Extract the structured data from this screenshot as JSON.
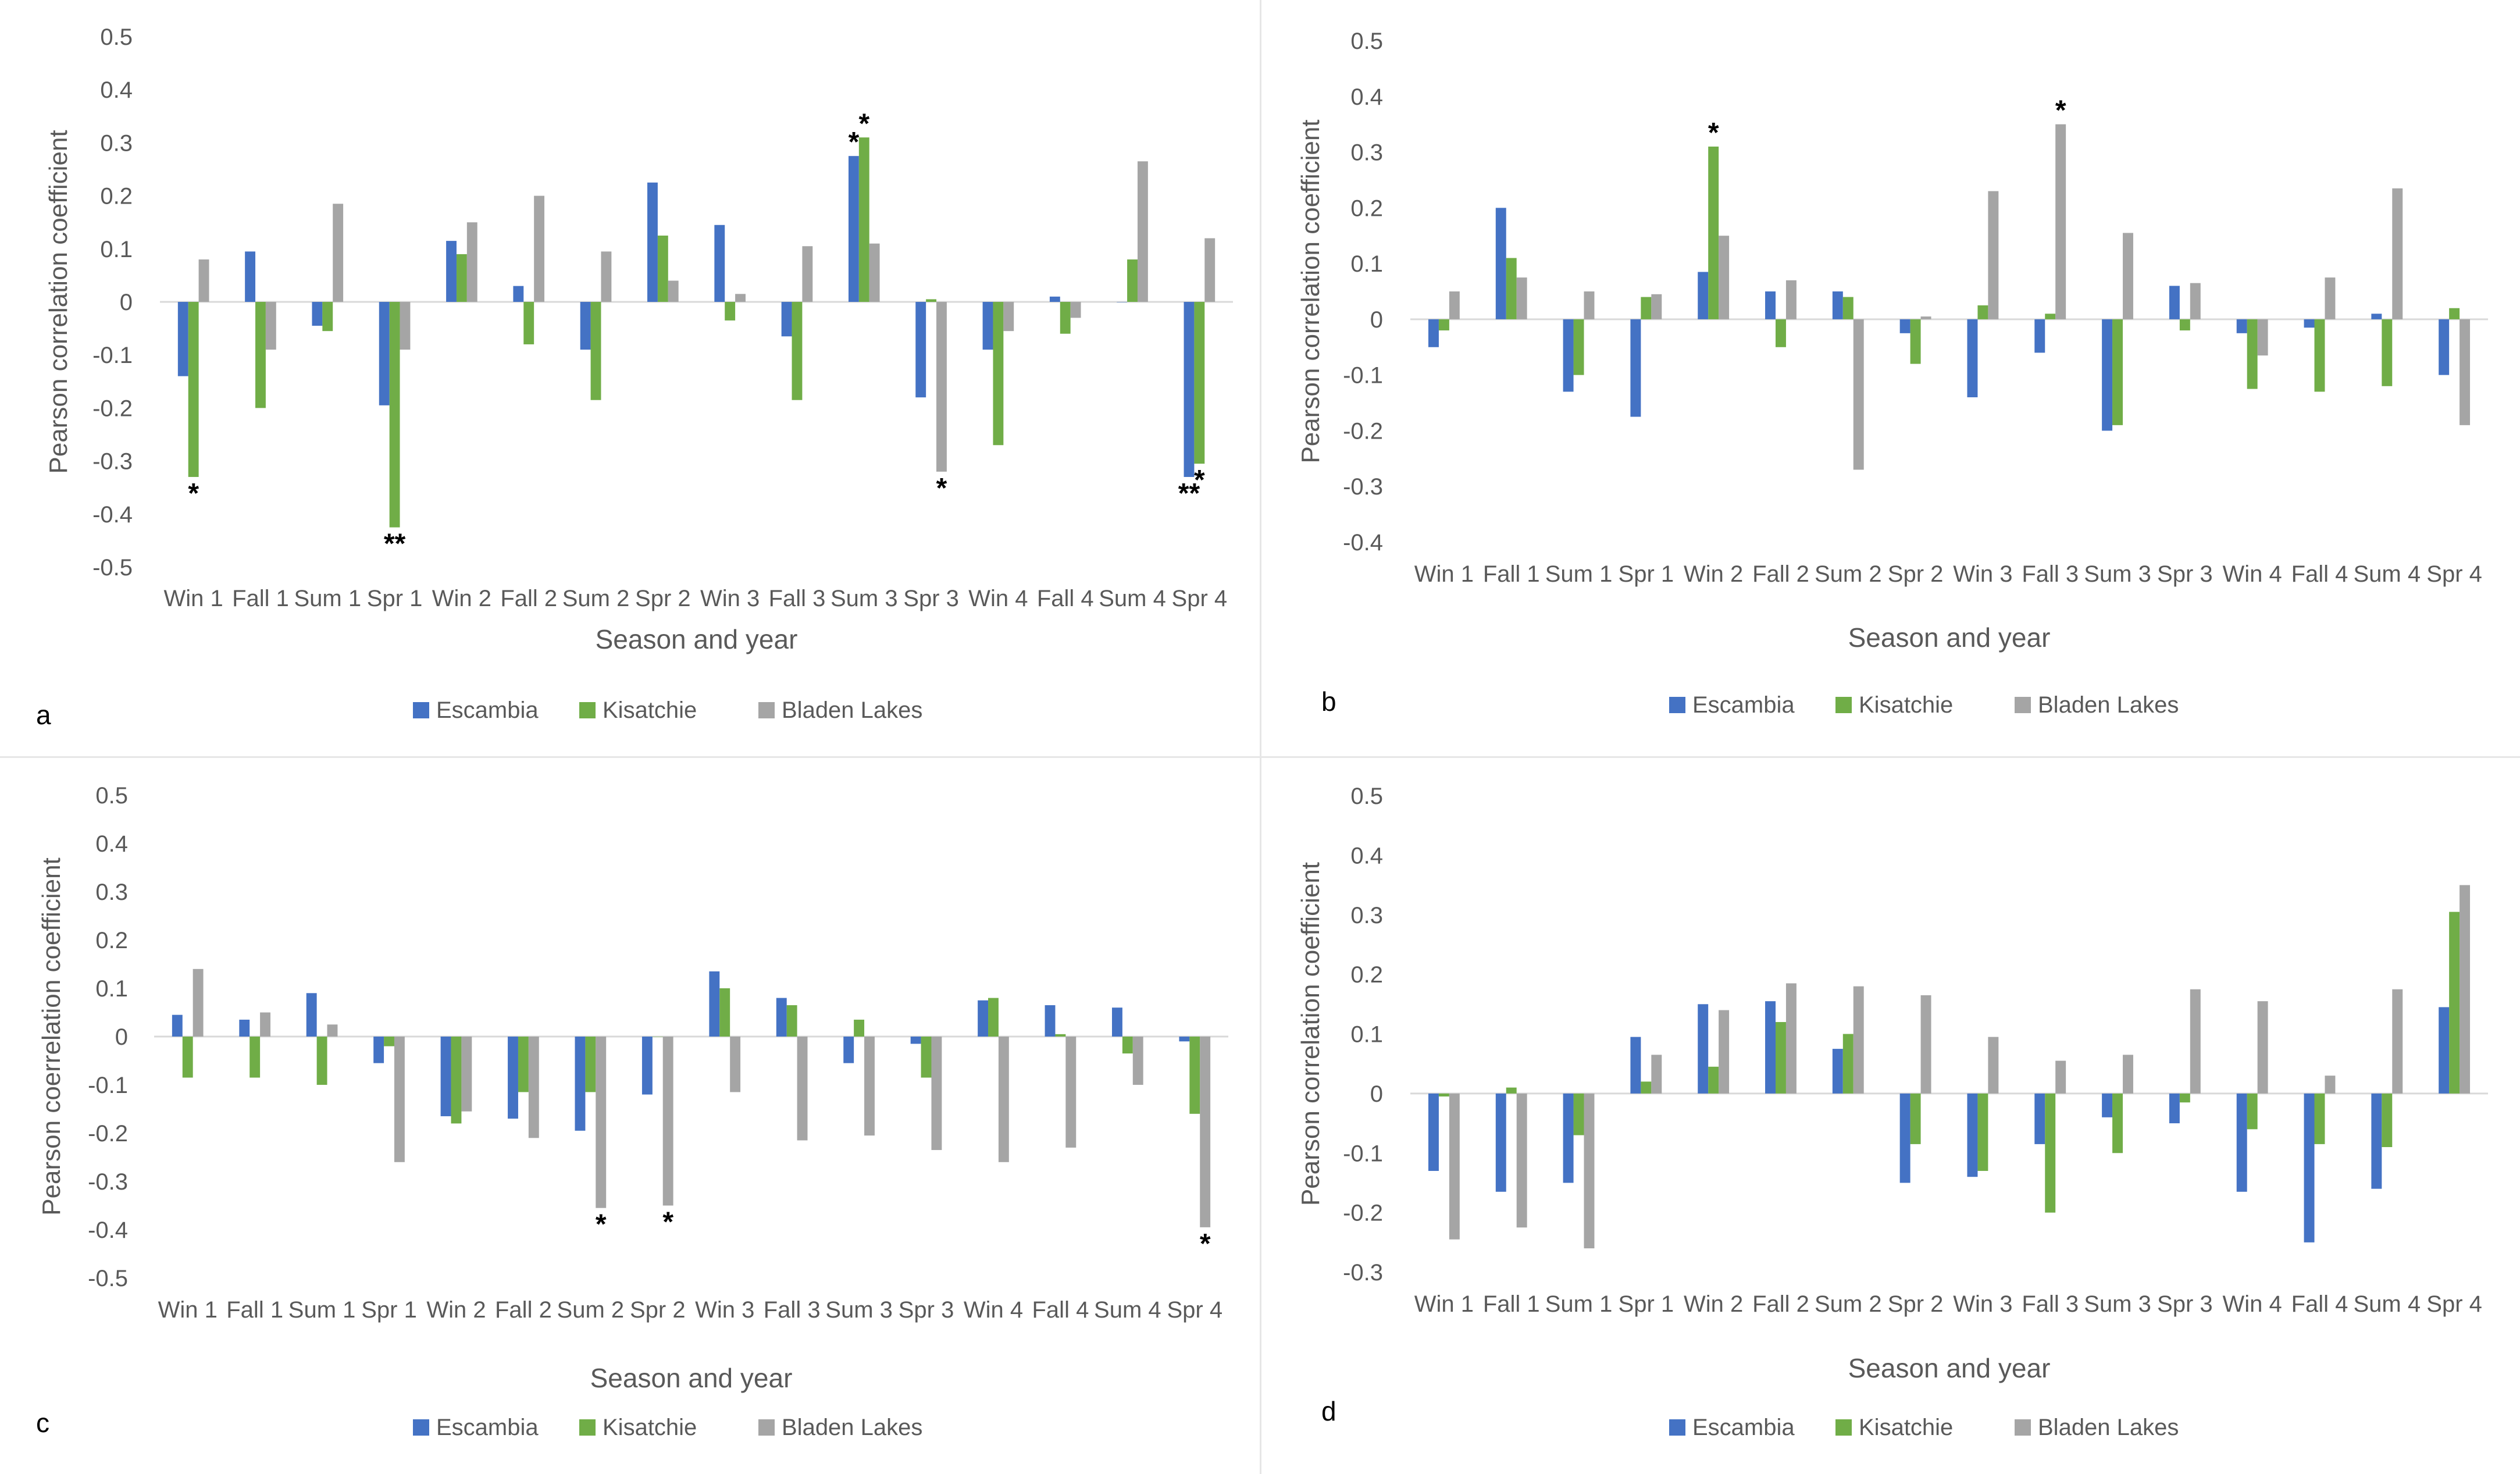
{
  "colors": {
    "escambia": "#4472C4",
    "kisatchie": "#70AD47",
    "bladen_lakes": "#A5A5A5",
    "axis": "#d9d9d9",
    "text": "#595959",
    "star": "#000000"
  },
  "chart_data": [
    {
      "panel": "a",
      "type": "bar",
      "ylabel": "Pearson correlation coefficient",
      "xlabel": "Season and year",
      "ylim": [
        -0.5,
        0.5
      ],
      "yticks": [
        "0.5",
        "0.4",
        "0.3",
        "0.2",
        "0.1",
        "0",
        "-0.1",
        "-0.2",
        "-0.3",
        "-0.4",
        "-0.5"
      ],
      "legend_position": "bottom",
      "categories": [
        "Win 1",
        "Fall 1",
        "Sum 1",
        "Spr 1",
        "Win 2",
        "Fall 2",
        "Sum 2",
        "Spr 2",
        "Win 3",
        "Fall 3",
        "Sum 3",
        "Spr 3",
        "Win 4",
        "Fall 4",
        "Sum 4",
        "Spr 4"
      ],
      "series": [
        {
          "name": "Escambia",
          "color_key": "escambia",
          "values": [
            -0.14,
            0.095,
            -0.045,
            -0.195,
            0.115,
            0.03,
            -0.09,
            0.225,
            0.145,
            -0.065,
            0.275,
            -0.18,
            -0.09,
            0.01,
            0,
            -0.33
          ],
          "stars": [
            "",
            "",
            "",
            "",
            "",
            "",
            "",
            "",
            "",
            "",
            "*",
            "",
            "",
            "",
            "",
            "**"
          ]
        },
        {
          "name": "Kisatchie",
          "color_key": "kisatchie",
          "values": [
            -0.33,
            -0.2,
            -0.055,
            -0.425,
            0.09,
            -0.08,
            -0.185,
            0.125,
            -0.035,
            -0.185,
            0.31,
            0.005,
            -0.27,
            -0.06,
            0.08,
            -0.305
          ],
          "stars": [
            "*",
            "",
            "",
            "**",
            "",
            "",
            "",
            "",
            "",
            "",
            "*",
            "",
            "",
            "",
            "",
            "*"
          ]
        },
        {
          "name": "Bladen Lakes",
          "color_key": "bladen_lakes",
          "values": [
            0.08,
            -0.09,
            0.185,
            -0.09,
            0.15,
            0.2,
            0.095,
            0.04,
            0.015,
            0.105,
            0.11,
            -0.32,
            -0.055,
            -0.03,
            0.265,
            0.12
          ],
          "stars": [
            "",
            "",
            "",
            "",
            "",
            "",
            "",
            "",
            "",
            "",
            "",
            "*",
            "",
            "",
            "",
            ""
          ]
        }
      ]
    },
    {
      "panel": "b",
      "type": "bar",
      "ylabel": "Pearson correlation coefficient",
      "xlabel": "Season and year",
      "ylim": [
        -0.4,
        0.5
      ],
      "yticks": [
        "0.5",
        "0.4",
        "0.3",
        "0.2",
        "0.1",
        "0",
        "-0.1",
        "-0.2",
        "-0.3",
        "-0.4"
      ],
      "legend_position": "bottom",
      "categories": [
        "Win 1",
        "Fall 1",
        "Sum 1",
        "Spr 1",
        "Win 2",
        "Fall 2",
        "Sum 2",
        "Spr 2",
        "Win 3",
        "Fall 3",
        "Sum 3",
        "Spr 3",
        "Win 4",
        "Fall 4",
        "Sum 4",
        "Spr 4"
      ],
      "series": [
        {
          "name": "Escambia",
          "color_key": "escambia",
          "values": [
            -0.05,
            0.2,
            -0.13,
            -0.175,
            0.085,
            0.05,
            0.05,
            -0.025,
            -0.14,
            -0.06,
            -0.2,
            0.06,
            -0.025,
            -0.015,
            0.01,
            -0.1
          ],
          "stars": [
            "",
            "",
            "",
            "",
            "",
            "",
            "",
            "",
            "",
            "",
            "",
            "",
            "",
            "",
            "",
            ""
          ]
        },
        {
          "name": "Kisatchie",
          "color_key": "kisatchie",
          "values": [
            -0.02,
            0.11,
            -0.1,
            0.04,
            0.31,
            -0.05,
            0.04,
            -0.08,
            0.025,
            0.01,
            -0.19,
            -0.02,
            -0.125,
            -0.13,
            -0.12,
            0.02
          ],
          "stars": [
            "",
            "",
            "",
            "",
            "*",
            "",
            "",
            "",
            "",
            "",
            "",
            "",
            "",
            "",
            "",
            ""
          ]
        },
        {
          "name": "Bladen Lakes",
          "color_key": "bladen_lakes",
          "values": [
            0.05,
            0.075,
            0.05,
            0.045,
            0.15,
            0.07,
            -0.27,
            0.005,
            0.23,
            0.35,
            0.155,
            0.065,
            -0.065,
            0.075,
            0.235,
            -0.19
          ],
          "stars": [
            "",
            "",
            "",
            "",
            "",
            "",
            "",
            "",
            "",
            "*",
            "",
            "",
            "",
            "",
            "",
            ""
          ]
        }
      ]
    },
    {
      "panel": "c",
      "type": "bar",
      "ylabel": "Pearson coerrelation coefficient",
      "xlabel": "Season and year",
      "ylim": [
        -0.5,
        0.5
      ],
      "yticks": [
        "0.5",
        "0.4",
        "0.3",
        "0.2",
        "0.1",
        "0",
        "-0.1",
        "-0.2",
        "-0.3",
        "-0.4",
        "-0.5"
      ],
      "legend_position": "bottom",
      "categories": [
        "Win 1",
        "Fall 1",
        "Sum 1",
        "Spr 1",
        "Win 2",
        "Fall 2",
        "Sum 2",
        "Spr 2",
        "Win 3",
        "Fall 3",
        "Sum 3",
        "Spr 3",
        "Win 4",
        "Fall 4",
        "Sum 4",
        "Spr 4"
      ],
      "series": [
        {
          "name": "Escambia",
          "color_key": "escambia",
          "values": [
            0.045,
            0.035,
            0.09,
            -0.055,
            -0.165,
            -0.17,
            -0.195,
            -0.12,
            0.135,
            0.08,
            -0.055,
            -0.015,
            0.075,
            0.065,
            0.06,
            -0.01
          ],
          "stars": [
            "",
            "",
            "",
            "",
            "",
            "",
            "",
            "",
            "",
            "",
            "",
            "",
            "",
            "",
            "",
            ""
          ]
        },
        {
          "name": "Kisatchie",
          "color_key": "kisatchie",
          "values": [
            -0.085,
            -0.085,
            -0.1,
            -0.02,
            -0.18,
            -0.115,
            -0.115,
            0,
            0.1,
            0.065,
            0.035,
            -0.085,
            0.08,
            0.005,
            -0.035,
            -0.16
          ],
          "stars": [
            "",
            "",
            "",
            "",
            "",
            "",
            "",
            "",
            "",
            "",
            "",
            "",
            "",
            "",
            "",
            ""
          ]
        },
        {
          "name": "Bladen Lakes",
          "color_key": "bladen_lakes",
          "values": [
            0.14,
            0.05,
            0.025,
            -0.26,
            -0.155,
            -0.21,
            -0.355,
            -0.35,
            -0.115,
            -0.215,
            -0.205,
            -0.235,
            -0.26,
            -0.23,
            -0.1,
            -0.395
          ],
          "stars": [
            "",
            "",
            "",
            "",
            "",
            "",
            "*",
            "*",
            "",
            "",
            "",
            "",
            "",
            "",
            "",
            "*"
          ]
        }
      ]
    },
    {
      "panel": "d",
      "type": "bar",
      "ylabel": "Pearson correlation coefficient",
      "xlabel": "Season and year",
      "ylim": [
        -0.3,
        0.5
      ],
      "yticks": [
        "0.5",
        "0.4",
        "0.3",
        "0.2",
        "0.1",
        "0",
        "-0.1",
        "-0.2",
        "-0.3"
      ],
      "legend_position": "bottom",
      "categories": [
        "Win 1",
        "Fall 1",
        "Sum 1",
        "Spr 1",
        "Win 2",
        "Fall 2",
        "Sum 2",
        "Spr 2",
        "Win 3",
        "Fall 3",
        "Sum 3",
        "Spr 3",
        "Win 4",
        "Fall 4",
        "Sum 4",
        "Spr 4"
      ],
      "series": [
        {
          "name": "Escambia",
          "color_key": "escambia",
          "values": [
            -0.13,
            -0.165,
            -0.15,
            0.095,
            0.15,
            0.155,
            0.075,
            -0.15,
            -0.14,
            -0.085,
            -0.04,
            -0.05,
            -0.165,
            -0.25,
            -0.16,
            0.145
          ],
          "stars": [
            "",
            "",
            "",
            "",
            "",
            "",
            "",
            "",
            "",
            "",
            "",
            "",
            "",
            "",
            "",
            ""
          ]
        },
        {
          "name": "Kisatchie",
          "color_key": "kisatchie",
          "values": [
            -0.005,
            0.01,
            -0.07,
            0.02,
            0.045,
            0.12,
            0.1,
            -0.085,
            -0.13,
            -0.2,
            -0.1,
            -0.015,
            -0.06,
            -0.085,
            -0.09,
            0.305
          ],
          "stars": [
            "",
            "",
            "",
            "",
            "",
            "",
            "",
            "",
            "",
            "",
            "",
            "",
            "",
            "",
            "",
            ""
          ]
        },
        {
          "name": "Bladen Lakes",
          "color_key": "bladen_lakes",
          "values": [
            -0.245,
            -0.225,
            -0.26,
            0.065,
            0.14,
            0.185,
            0.18,
            0.165,
            0.095,
            0.055,
            0.065,
            0.175,
            0.155,
            0.03,
            0.175,
            0.35
          ],
          "stars": [
            "",
            "",
            "",
            "",
            "",
            "",
            "",
            "",
            "",
            "",
            "",
            "",
            "",
            "",
            "",
            ""
          ]
        }
      ]
    }
  ]
}
